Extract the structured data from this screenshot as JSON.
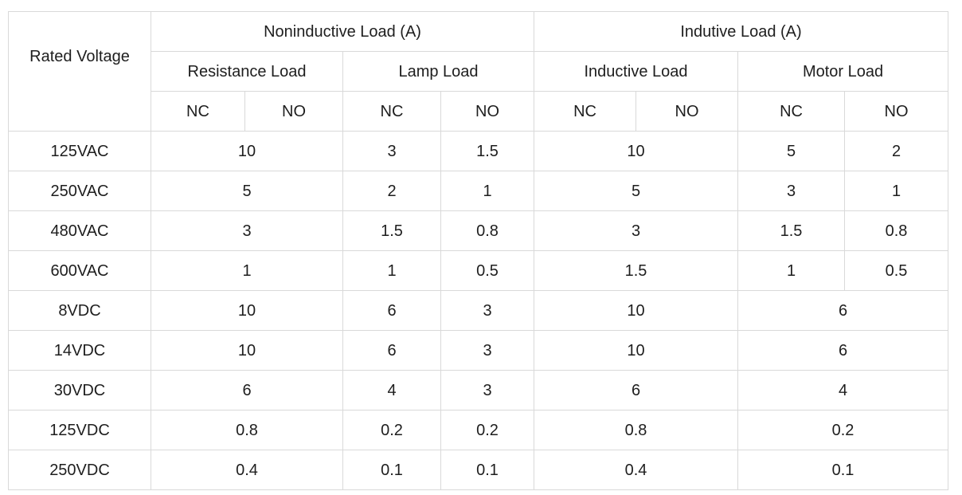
{
  "header": {
    "rated_voltage": "Rated Voltage",
    "noninductive": "Noninductive Load (A)",
    "inductive": "Indutive Load (A)",
    "resistance_load": "Resistance Load",
    "lamp_load": "Lamp Load",
    "inductive_load": "Inductive Load",
    "motor_load": "Motor Load",
    "nc": "NC",
    "no": "NO"
  },
  "rows": [
    {
      "voltage": "125VAC",
      "resistance": "10",
      "lamp_nc": "3",
      "lamp_no": "1.5",
      "inductive": "10",
      "motor_nc": "5",
      "motor_no": "2"
    },
    {
      "voltage": "250VAC",
      "resistance": "5",
      "lamp_nc": "2",
      "lamp_no": "1",
      "inductive": "5",
      "motor_nc": "3",
      "motor_no": "1"
    },
    {
      "voltage": "480VAC",
      "resistance": "3",
      "lamp_nc": "1.5",
      "lamp_no": "0.8",
      "inductive": "3",
      "motor_nc": "1.5",
      "motor_no": "0.8"
    },
    {
      "voltage": "600VAC",
      "resistance": "1",
      "lamp_nc": "1",
      "lamp_no": "0.5",
      "inductive": "1.5",
      "motor_nc": "1",
      "motor_no": "0.5"
    },
    {
      "voltage": "8VDC",
      "resistance": "10",
      "lamp_nc": "6",
      "lamp_no": "3",
      "inductive": "10",
      "motor": "6"
    },
    {
      "voltage": "14VDC",
      "resistance": "10",
      "lamp_nc": "6",
      "lamp_no": "3",
      "inductive": "10",
      "motor": "6"
    },
    {
      "voltage": "30VDC",
      "resistance": "6",
      "lamp_nc": "4",
      "lamp_no": "3",
      "inductive": "6",
      "motor": "4"
    },
    {
      "voltage": "125VDC",
      "resistance": "0.8",
      "lamp_nc": "0.2",
      "lamp_no": "0.2",
      "inductive": "0.8",
      "motor": "0.2"
    },
    {
      "voltage": "250VDC",
      "resistance": "0.4",
      "lamp_nc": "0.1",
      "lamp_no": "0.1",
      "inductive": "0.4",
      "motor": "0.1"
    }
  ]
}
